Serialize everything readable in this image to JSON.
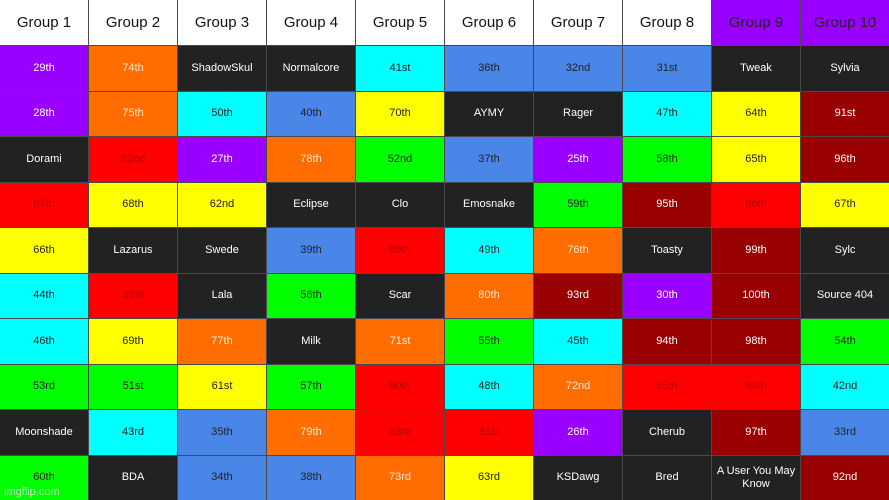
{
  "colors": {
    "purple": "#9900ff",
    "orange": "#ff6d01",
    "dark": "#222222",
    "cyan": "#00ffff",
    "blue": "#4a86e8",
    "yellow": "#ffff00",
    "red": "#ff0000",
    "green": "#00ff00",
    "darkred": "#990000",
    "white": "#ffffff"
  },
  "headers": [
    {
      "label": "Group 1",
      "color": "white"
    },
    {
      "label": "Group 2",
      "color": "white"
    },
    {
      "label": "Group 3",
      "color": "white"
    },
    {
      "label": "Group 4",
      "color": "white"
    },
    {
      "label": "Group 5",
      "color": "white"
    },
    {
      "label": "Group 6",
      "color": "white"
    },
    {
      "label": "Group 7",
      "color": "white"
    },
    {
      "label": "Group 8",
      "color": "white"
    },
    {
      "label": "Group 9",
      "color": "purple"
    },
    {
      "label": "Group 10",
      "color": "purple"
    }
  ],
  "rows": [
    [
      {
        "text": "29th",
        "color": "purple"
      },
      {
        "text": "74th",
        "color": "orange"
      },
      {
        "text": "ShadowSkul",
        "color": "dark"
      },
      {
        "text": "Normalcore",
        "color": "dark"
      },
      {
        "text": "41st",
        "color": "cyan"
      },
      {
        "text": "36th",
        "color": "blue"
      },
      {
        "text": "32nd",
        "color": "blue"
      },
      {
        "text": "31st",
        "color": "blue"
      },
      {
        "text": "Tweak",
        "color": "dark"
      },
      {
        "text": "Sylvia",
        "color": "dark"
      }
    ],
    [
      {
        "text": "28th",
        "color": "purple"
      },
      {
        "text": "75th",
        "color": "orange"
      },
      {
        "text": "50th",
        "color": "cyan"
      },
      {
        "text": "40th",
        "color": "blue"
      },
      {
        "text": "70th",
        "color": "yellow"
      },
      {
        "text": "AYMY",
        "color": "dark"
      },
      {
        "text": "Rager",
        "color": "dark"
      },
      {
        "text": "47th",
        "color": "cyan"
      },
      {
        "text": "64th",
        "color": "yellow"
      },
      {
        "text": "91st",
        "color": "darkred"
      }
    ],
    [
      {
        "text": "Dorami",
        "color": "dark"
      },
      {
        "text": "82nd",
        "color": "red"
      },
      {
        "text": "27th",
        "color": "purple"
      },
      {
        "text": "78th",
        "color": "orange"
      },
      {
        "text": "52nd",
        "color": "green"
      },
      {
        "text": "37th",
        "color": "blue"
      },
      {
        "text": "25th",
        "color": "purple"
      },
      {
        "text": "58th",
        "color": "green"
      },
      {
        "text": "65th",
        "color": "yellow"
      },
      {
        "text": "96th",
        "color": "darkred"
      }
    ],
    [
      {
        "text": "87th",
        "color": "red"
      },
      {
        "text": "68th",
        "color": "yellow"
      },
      {
        "text": "62nd",
        "color": "yellow"
      },
      {
        "text": "Eclipse",
        "color": "dark"
      },
      {
        "text": "Clo",
        "color": "dark"
      },
      {
        "text": "Emosnake",
        "color": "dark"
      },
      {
        "text": "59th",
        "color": "green"
      },
      {
        "text": "95th",
        "color": "darkred"
      },
      {
        "text": "86th",
        "color": "red"
      },
      {
        "text": "67th",
        "color": "yellow"
      }
    ],
    [
      {
        "text": "66th",
        "color": "yellow"
      },
      {
        "text": "Lazarus",
        "color": "dark"
      },
      {
        "text": "Swede",
        "color": "dark"
      },
      {
        "text": "39th",
        "color": "blue"
      },
      {
        "text": "89th",
        "color": "red"
      },
      {
        "text": "49th",
        "color": "cyan"
      },
      {
        "text": "76th",
        "color": "orange"
      },
      {
        "text": "Toasty",
        "color": "dark"
      },
      {
        "text": "99th",
        "color": "darkred"
      },
      {
        "text": "Sylc",
        "color": "dark"
      }
    ],
    [
      {
        "text": "44th",
        "color": "cyan"
      },
      {
        "text": "88th",
        "color": "red"
      },
      {
        "text": "Lala",
        "color": "dark"
      },
      {
        "text": "56th",
        "color": "green"
      },
      {
        "text": "Scar",
        "color": "dark"
      },
      {
        "text": "80th",
        "color": "orange"
      },
      {
        "text": "93rd",
        "color": "darkred"
      },
      {
        "text": "30th",
        "color": "purple"
      },
      {
        "text": "100th",
        "color": "darkred"
      },
      {
        "text": "Source 404",
        "color": "dark"
      }
    ],
    [
      {
        "text": "46th",
        "color": "cyan"
      },
      {
        "text": "69th",
        "color": "yellow"
      },
      {
        "text": "77th",
        "color": "orange"
      },
      {
        "text": "Milk",
        "color": "dark"
      },
      {
        "text": "71st",
        "color": "orange"
      },
      {
        "text": "55th",
        "color": "green"
      },
      {
        "text": "45th",
        "color": "cyan"
      },
      {
        "text": "94th",
        "color": "darkred"
      },
      {
        "text": "98th",
        "color": "darkred"
      },
      {
        "text": "54th",
        "color": "green"
      }
    ],
    [
      {
        "text": "53rd",
        "color": "green"
      },
      {
        "text": "51st",
        "color": "green"
      },
      {
        "text": "61st",
        "color": "yellow"
      },
      {
        "text": "57th",
        "color": "green"
      },
      {
        "text": "90th",
        "color": "red"
      },
      {
        "text": "48th",
        "color": "cyan"
      },
      {
        "text": "72nd",
        "color": "orange"
      },
      {
        "text": "85th",
        "color": "red"
      },
      {
        "text": "84th",
        "color": "red"
      },
      {
        "text": "42nd",
        "color": "cyan"
      }
    ],
    [
      {
        "text": "Moonshade",
        "color": "dark"
      },
      {
        "text": "43rd",
        "color": "cyan"
      },
      {
        "text": "35th",
        "color": "blue"
      },
      {
        "text": "79th",
        "color": "orange"
      },
      {
        "text": "83rd",
        "color": "red"
      },
      {
        "text": "81st",
        "color": "red"
      },
      {
        "text": "26th",
        "color": "purple"
      },
      {
        "text": "Cherub",
        "color": "dark"
      },
      {
        "text": "97th",
        "color": "darkred"
      },
      {
        "text": "33rd",
        "color": "blue"
      }
    ],
    [
      {
        "text": "60th",
        "color": "green"
      },
      {
        "text": "BDA",
        "color": "dark"
      },
      {
        "text": "34th",
        "color": "blue"
      },
      {
        "text": "38th",
        "color": "blue"
      },
      {
        "text": "73rd",
        "color": "orange"
      },
      {
        "text": "63rd",
        "color": "yellow"
      },
      {
        "text": "KSDawg",
        "color": "dark"
      },
      {
        "text": "Bred",
        "color": "dark"
      },
      {
        "text": "A User You May Know",
        "color": "dark"
      },
      {
        "text": "92nd",
        "color": "darkred"
      }
    ]
  ],
  "watermark": "imgflip.com"
}
